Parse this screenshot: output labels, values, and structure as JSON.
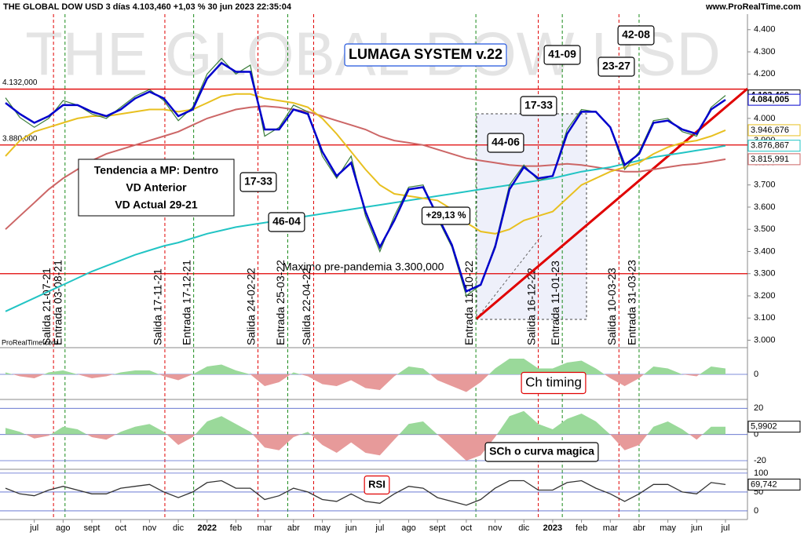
{
  "header": {
    "title": "THE GLOBAL DOW USD 3 días 4.103,460 +1,03 % 30 jun 2023 22:35:04",
    "site": "www.ProRealTime.com",
    "watermark": "THE GLOBAL DOW USD",
    "credit": "ProRealTime.com"
  },
  "chart_data": [
    {
      "type": "line",
      "title": "LUMAGA SYSTEM v.22",
      "categories": [
        null,
        null,
        "jul",
        null,
        "ago",
        null,
        "sept",
        null,
        "oct",
        null,
        "nov",
        null,
        "dic",
        null,
        "2022",
        null,
        "feb",
        null,
        "mar",
        null,
        "abr",
        null,
        "may",
        null,
        "jun",
        null,
        "jul",
        null,
        "ago",
        null,
        "sept",
        null,
        "oct",
        null,
        "nov",
        null,
        "dic",
        null,
        "2023",
        null,
        "feb",
        null,
        "mar",
        null,
        "abr",
        null,
        "may",
        null,
        "jun",
        null,
        "jul"
      ],
      "series": [
        {
          "color": "#cc6666",
          "values": [
            3500,
            3560,
            3620,
            3680,
            3730,
            3770,
            3810,
            3840,
            3860,
            3880,
            3900,
            3920,
            3940,
            3970,
            4000,
            4020,
            4040,
            4050,
            4055,
            4050,
            4040,
            4030,
            4010,
            3990,
            3970,
            3950,
            3920,
            3900,
            3890,
            3880,
            3860,
            3840,
            3820,
            3810,
            3800,
            3790,
            3785,
            3785,
            3790,
            3795,
            3790,
            3780,
            3770,
            3760,
            3760,
            3770,
            3780,
            3790,
            3795,
            3805,
            3815.991
          ],
          "last_value_label": "3.815,991"
        },
        {
          "color": "#22c4c4",
          "values": [
            3130,
            3160,
            3190,
            3220,
            3250,
            3280,
            3310,
            3335,
            3360,
            3385,
            3405,
            3425,
            3440,
            3460,
            3480,
            3495,
            3510,
            3520,
            3530,
            3540,
            3550,
            3560,
            3570,
            3580,
            3590,
            3600,
            3610,
            3620,
            3630,
            3640,
            3650,
            3660,
            3670,
            3680,
            3690,
            3700,
            3710,
            3720,
            3730,
            3745,
            3760,
            3770,
            3780,
            3795,
            3810,
            3825,
            3835,
            3845,
            3855,
            3865,
            3876.867
          ],
          "last_value_label": "3.876,867"
        },
        {
          "color": "#e8c020",
          "values": [
            3830,
            3900,
            3940,
            3960,
            3980,
            4000,
            4010,
            4010,
            4020,
            4030,
            4040,
            4040,
            4030,
            4040,
            4070,
            4100,
            4110,
            4110,
            4090,
            4080,
            4070,
            4050,
            4000,
            3930,
            3850,
            3770,
            3700,
            3660,
            3650,
            3640,
            3630,
            3590,
            3530,
            3490,
            3480,
            3500,
            3540,
            3560,
            3580,
            3640,
            3700,
            3730,
            3760,
            3780,
            3800,
            3840,
            3870,
            3890,
            3900,
            3920,
            3946.676
          ],
          "last_value_label": "3.946,676"
        },
        {
          "color": "#3a7d3a",
          "values": [
            4093,
            4004,
            3960,
            4000,
            4080,
            4060,
            4020,
            4000,
            4050,
            4100,
            4130,
            4080,
            3990,
            4050,
            4200,
            4270,
            4200,
            4240,
            3920,
            3960,
            4060,
            4030,
            3830,
            3730,
            3830,
            3560,
            3400,
            3560,
            3690,
            3700,
            3550,
            3420,
            3200,
            3250,
            3430,
            3700,
            3790,
            3720,
            3740,
            3950,
            4040,
            4030,
            3960,
            3770,
            3850,
            3990,
            4000,
            3940,
            3920,
            4050,
            4103.46
          ],
          "last_value_label": "4.103,460"
        },
        {
          "color": "#0000cc",
          "values": [
            4070,
            4020,
            3980,
            4010,
            4060,
            4060,
            4030,
            4010,
            4040,
            4090,
            4120,
            4090,
            4010,
            4040,
            4180,
            4250,
            4210,
            4210,
            3950,
            3950,
            4040,
            4020,
            3850,
            3740,
            3800,
            3580,
            3420,
            3540,
            3680,
            3690,
            3560,
            3430,
            3220,
            3250,
            3420,
            3680,
            3780,
            3730,
            3740,
            3930,
            4030,
            4030,
            3960,
            3790,
            3840,
            3980,
            3990,
            3950,
            3930,
            4040,
            4084.005
          ],
          "last_value_label": "4.084,005"
        }
      ],
      "ylim": [
        2970,
        4470
      ],
      "yticks": [
        {
          "value": 3000,
          "label": "3.000"
        },
        {
          "value": 3100,
          "label": "3.100"
        },
        {
          "value": 3200,
          "label": "3.200"
        },
        {
          "value": 3300,
          "label": "3.300"
        },
        {
          "value": 3400,
          "label": "3.400"
        },
        {
          "value": 3500,
          "label": "3.500"
        },
        {
          "value": 3600,
          "label": "3.600"
        },
        {
          "value": 3700,
          "label": "3.700"
        },
        {
          "value": 3800,
          "label": "3.800"
        },
        {
          "value": 3900,
          "label": "3.900"
        },
        {
          "value": 4000,
          "label": "4.000"
        },
        {
          "value": 4100,
          "label": "4.100"
        },
        {
          "value": 4200,
          "label": "4.200"
        },
        {
          "value": 4300,
          "label": "4.300"
        },
        {
          "value": 4400,
          "label": "4.400"
        }
      ],
      "hlines": [
        {
          "value": 4132,
          "label": "4.132,000"
        },
        {
          "value": 3880,
          "label": "3.880,000"
        },
        {
          "value": 3300,
          "label": "Maximo pre-pandemia  3.300,000"
        }
      ],
      "signals": [
        {
          "label": "Salida 21-07-21",
          "color": "#e00000"
        },
        {
          "label": "Entrada 03-08-21",
          "color": "#1a8a1a"
        },
        {
          "label": "Salida 17-11-21",
          "color": "#e00000"
        },
        {
          "label": "Entrada 17-12-21",
          "color": "#1a8a1a"
        },
        {
          "label": "Salida 24-02-22",
          "color": "#e00000"
        },
        {
          "label": "Entrada 25-03-22",
          "color": "#1a8a1a"
        },
        {
          "label": "Salida 22-04-22",
          "color": "#e00000"
        },
        {
          "label": "Entrada 11-10-22",
          "color": "#1a8a1a"
        },
        {
          "label": "Salida 16-12-22",
          "color": "#e00000"
        },
        {
          "label": "Entrada 11-01-23",
          "color": "#1a8a1a"
        },
        {
          "label": "Salida 10-03-23",
          "color": "#e00000"
        },
        {
          "label": "Entrada 31-03-23",
          "color": "#1a8a1a"
        }
      ],
      "annotations": [
        "17-33",
        "46-04",
        "44-06",
        "17-33",
        "41-09",
        "23-27",
        "42-08",
        "+29,13 %"
      ],
      "trend_box": [
        "Tendencia a MP: Dentro",
        "VD Anterior",
        "VD Actual  29-21"
      ]
    },
    {
      "type": "area",
      "title": "Ch timing",
      "color_up": "#9ad99a",
      "color_down": "#e79a9a",
      "values": [
        0.1,
        -0.1,
        -0.2,
        0.1,
        0.2,
        0,
        -0.2,
        -0.1,
        0.1,
        0.2,
        0.2,
        -0.1,
        -0.3,
        0,
        0.4,
        0.5,
        0.2,
        0,
        -0.6,
        -0.4,
        0.1,
        -0.1,
        -0.5,
        -0.6,
        -0.3,
        -0.7,
        -0.8,
        -0.1,
        0.4,
        0.3,
        -0.3,
        -0.6,
        -0.9,
        -0.4,
        0.3,
        0.8,
        0.8,
        0.3,
        0.3,
        0.6,
        0.7,
        0.3,
        -0.2,
        -0.6,
        -0.2,
        0.4,
        0.3,
        0,
        -0.1,
        0.4,
        0.3
      ],
      "ylim": [
        -1.2,
        1.2
      ],
      "yticks": [
        0
      ]
    },
    {
      "type": "area",
      "title": "SCh o curva magica",
      "color_up": "#9ad99a",
      "color_down": "#e79a9a",
      "values": [
        5,
        2,
        -3,
        -1,
        6,
        4,
        -2,
        -4,
        2,
        6,
        8,
        2,
        -8,
        -2,
        10,
        14,
        8,
        2,
        -10,
        -12,
        -2,
        2,
        -8,
        -14,
        -6,
        -14,
        -16,
        -4,
        8,
        10,
        0,
        -10,
        -20,
        -16,
        -2,
        14,
        18,
        8,
        4,
        12,
        16,
        10,
        0,
        -12,
        -8,
        6,
        10,
        4,
        -4,
        6,
        5.9902
      ],
      "last_value_label": "5,9902",
      "ylim": [
        -26,
        25
      ],
      "yticks": [
        20,
        0,
        -20
      ]
    },
    {
      "type": "line",
      "title": "RSI",
      "color": "#333333",
      "values": [
        60,
        45,
        40,
        55,
        65,
        55,
        45,
        45,
        60,
        65,
        70,
        50,
        35,
        50,
        75,
        80,
        60,
        60,
        30,
        40,
        60,
        50,
        30,
        25,
        45,
        25,
        20,
        45,
        65,
        60,
        35,
        25,
        15,
        30,
        60,
        80,
        80,
        55,
        55,
        75,
        80,
        60,
        45,
        25,
        45,
        70,
        70,
        50,
        45,
        75,
        69.742
      ],
      "last_value_label": "69,742",
      "ylim": [
        -23,
        106
      ],
      "yticks": [
        100,
        50,
        0
      ]
    }
  ]
}
